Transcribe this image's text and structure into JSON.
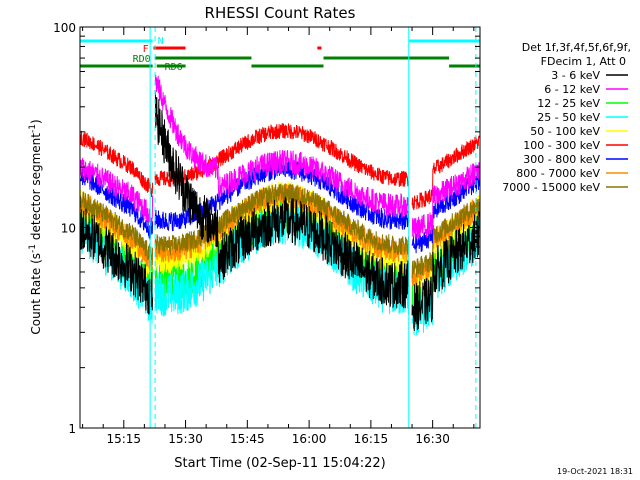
{
  "chart_data": {
    "type": "line",
    "title": "RHESSI Count Rates",
    "xlabel": "Start Time (02-Sep-11 15:04:22)",
    "ylabel_main": "Count Rate (s",
    "ylabel_sup1": "-1",
    "ylabel_mid": " detector segment",
    "ylabel_sup2": "-1",
    "ylabel_end": ")",
    "yscale": "log",
    "ylim": [
      1,
      100
    ],
    "xlim": [
      "15:04:22",
      "16:41:30"
    ],
    "x_ticks": [
      "15:15",
      "15:30",
      "15:45",
      "16:00",
      "16:15",
      "16:30"
    ],
    "x_tick_minutes": [
      15,
      30,
      45,
      60,
      75,
      90
    ],
    "y_ticks": [
      "1",
      "10",
      "100"
    ],
    "legend_header": [
      "Det 1f,3f,4f,5f,6f,9f,",
      "FDecim 1, Att 0"
    ],
    "series": [
      {
        "name": "3 - 6 keV",
        "color": "#000000",
        "level": 7.5,
        "amp": 0.16,
        "rise": 0.85,
        "noise": 0.12
      },
      {
        "name": "6 - 12 keV",
        "color": "#ff00ff",
        "level": 16.5,
        "amp": 0.11,
        "rise": 0.45,
        "noise": 0.06
      },
      {
        "name": "12 - 25 keV",
        "color": "#00ff00",
        "level": 8.0,
        "amp": 0.17,
        "rise": 0,
        "noise": 0.1
      },
      {
        "name": "25 - 50 keV",
        "color": "#00ffff",
        "level": 7.0,
        "amp": 0.18,
        "rise": 0,
        "noise": 0.11
      },
      {
        "name": "50 - 100 keV",
        "color": "#ffff00",
        "level": 10.0,
        "amp": 0.15,
        "rise": 0,
        "noise": 0.08
      },
      {
        "name": "100 - 300 keV",
        "color": "#ff0000",
        "level": 23.0,
        "amp": 0.12,
        "rise": 0,
        "noise": 0.04
      },
      {
        "name": "300 - 800 keV",
        "color": "#0000ff",
        "level": 14.5,
        "amp": 0.13,
        "rise": 0,
        "noise": 0.05
      },
      {
        "name": "800 - 7000 keV",
        "color": "#ff8800",
        "level": 10.5,
        "amp": 0.14,
        "rise": 0,
        "noise": 0.06
      },
      {
        "name": "7000 - 15000 keV",
        "color": "#8b7500",
        "level": 11.0,
        "amp": 0.13,
        "rise": 0,
        "noise": 0.05
      }
    ],
    "flag_labels": {
      "night": "N",
      "flare": "F",
      "rd0": "RD0",
      "rd6": "RD6"
    }
  },
  "footer": {
    "timestamp": "19-Oct-2021 18:31"
  }
}
